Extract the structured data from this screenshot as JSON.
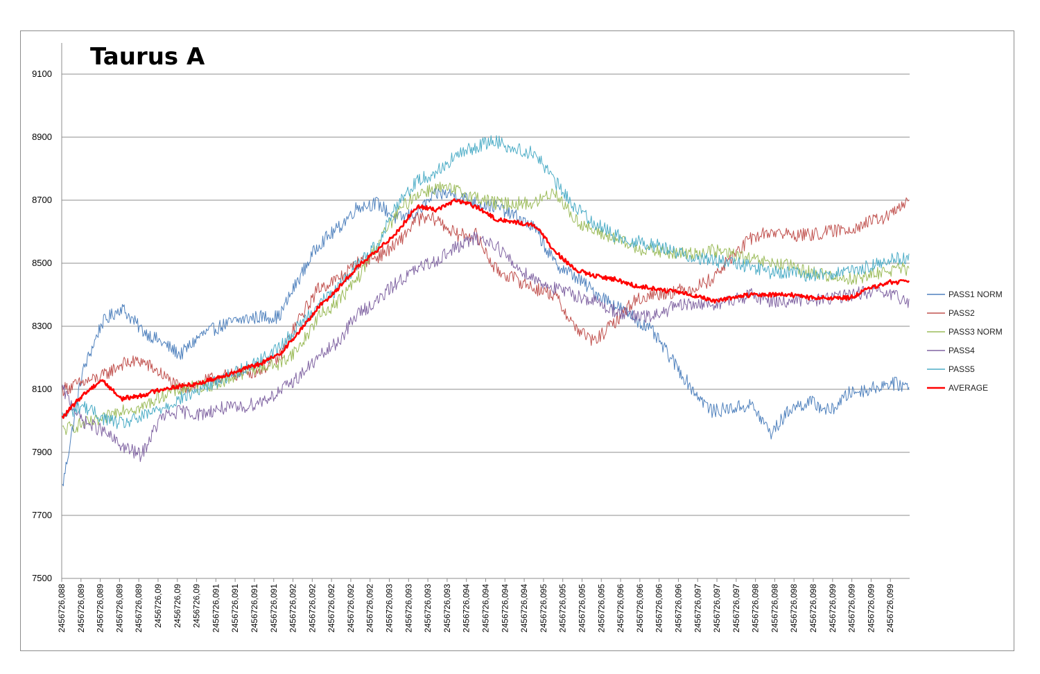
{
  "chart_data": {
    "type": "line",
    "title": "Taurus A",
    "xlabel": "",
    "ylabel": "",
    "ylim": [
      7500,
      9100
    ],
    "yticks": [
      7500,
      7700,
      7900,
      8100,
      8300,
      8500,
      8700,
      8900,
      9100
    ],
    "grid": true,
    "legend_position": "right",
    "categories": [
      "2456726,088",
      "2456726,089",
      "2456726,089",
      "2456726,089",
      "2456726,089",
      "2456726,09",
      "2456726,09",
      "2456726,09",
      "2456726,091",
      "2456726,091",
      "2456726,091",
      "2456726,091",
      "2456726,092",
      "2456726,092",
      "2456726,092",
      "2456726,092",
      "2456726,092",
      "2456726,093",
      "2456726,093",
      "2456726,093",
      "2456726,093",
      "2456726,094",
      "2456726,094",
      "2456726,094",
      "2456726,094",
      "2456726,095",
      "2456726,095",
      "2456726,095",
      "2456726,095",
      "2456726,096",
      "2456726,096",
      "2456726,096",
      "2456726,096",
      "2456726,097",
      "2456726,097",
      "2456726,097",
      "2456726,098",
      "2456726,098",
      "2456726,098",
      "2456726,098",
      "2456726,099",
      "2456726,099",
      "2456726,099",
      "2456726,099"
    ],
    "series": [
      {
        "name": "PASS1 NORM",
        "color": "#4f81bd",
        "values": [
          7790,
          8150,
          8310,
          8360,
          8290,
          8250,
          8210,
          8270,
          8300,
          8320,
          8330,
          8330,
          8450,
          8560,
          8610,
          8680,
          8690,
          8640,
          8660,
          8720,
          8720,
          8690,
          8680,
          8650,
          8610,
          8500,
          8460,
          8410,
          8370,
          8330,
          8280,
          8190,
          8100,
          8030,
          8040,
          8050,
          7960,
          8040,
          8060,
          8030,
          8090,
          8100,
          8120,
          8110
        ]
      },
      {
        "name": "PASS2",
        "color": "#c0504d",
        "values": [
          8100,
          8120,
          8140,
          8180,
          8190,
          8150,
          8100,
          8120,
          8140,
          8150,
          8160,
          8200,
          8320,
          8420,
          8450,
          8500,
          8520,
          8560,
          8640,
          8640,
          8590,
          8590,
          8480,
          8450,
          8420,
          8400,
          8300,
          8250,
          8310,
          8380,
          8400,
          8410,
          8420,
          8450,
          8520,
          8580,
          8600,
          8590,
          8590,
          8600,
          8610,
          8630,
          8650,
          8700
        ]
      },
      {
        "name": "PASS3 NORM",
        "color": "#9bbb59",
        "values": [
          7970,
          7990,
          8000,
          8040,
          8040,
          8080,
          8100,
          8110,
          8120,
          8150,
          8170,
          8180,
          8230,
          8330,
          8380,
          8450,
          8560,
          8660,
          8720,
          8740,
          8730,
          8710,
          8690,
          8690,
          8690,
          8730,
          8640,
          8600,
          8580,
          8550,
          8540,
          8530,
          8530,
          8540,
          8530,
          8510,
          8500,
          8490,
          8470,
          8460,
          8450,
          8460,
          8480,
          8480
        ]
      },
      {
        "name": "PASS4",
        "color": "#8064a2",
        "values": [
          8100,
          8000,
          7970,
          7920,
          7890,
          8010,
          8030,
          8020,
          8040,
          8040,
          8060,
          8090,
          8140,
          8200,
          8250,
          8340,
          8380,
          8440,
          8480,
          8510,
          8550,
          8580,
          8560,
          8490,
          8450,
          8420,
          8400,
          8380,
          8350,
          8330,
          8330,
          8360,
          8370,
          8370,
          8380,
          8400,
          8380,
          8380,
          8380,
          8390,
          8400,
          8410,
          8400,
          8380
        ]
      },
      {
        "name": "PASS5",
        "color": "#4bacc6",
        "values": [
          8010,
          8050,
          8010,
          7990,
          8010,
          8040,
          8070,
          8100,
          8130,
          8160,
          8190,
          8230,
          8300,
          8370,
          8420,
          8500,
          8560,
          8690,
          8760,
          8790,
          8840,
          8870,
          8890,
          8860,
          8850,
          8760,
          8680,
          8630,
          8590,
          8570,
          8560,
          8540,
          8520,
          8510,
          8500,
          8490,
          8470,
          8470,
          8460,
          8470,
          8470,
          8490,
          8510,
          8520
        ]
      },
      {
        "name": "AVERAGE",
        "color": "#ff0000",
        "values": [
          8010,
          8080,
          8130,
          8070,
          8080,
          8100,
          8110,
          8120,
          8140,
          8160,
          8180,
          8210,
          8280,
          8360,
          8420,
          8490,
          8540,
          8600,
          8680,
          8670,
          8700,
          8680,
          8640,
          8630,
          8620,
          8540,
          8480,
          8460,
          8450,
          8430,
          8420,
          8410,
          8400,
          8380,
          8390,
          8400,
          8400,
          8400,
          8390,
          8390,
          8390,
          8420,
          8440,
          8440
        ]
      }
    ]
  }
}
